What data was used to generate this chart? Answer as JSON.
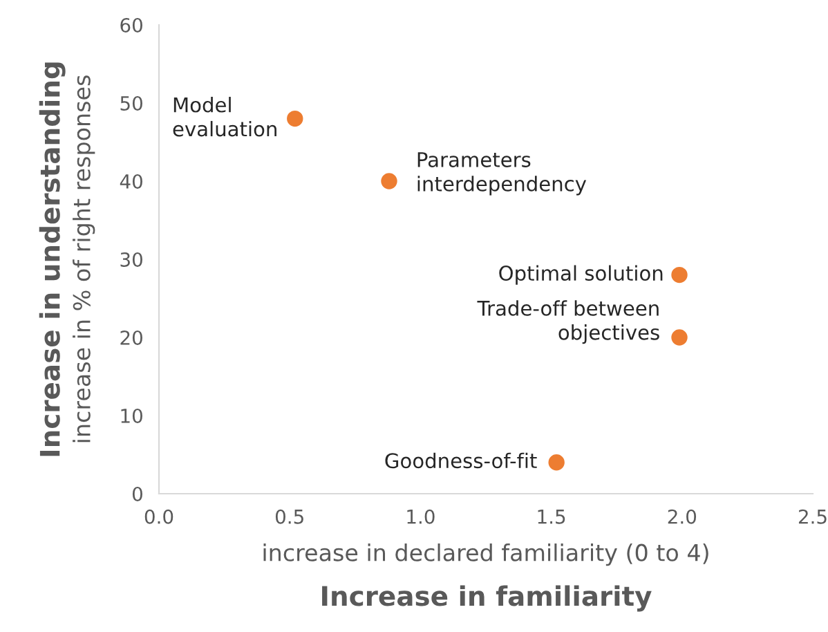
{
  "chart_data": {
    "type": "scatter",
    "xlabel": "Increase in familiarity",
    "ylabel": "Increase in understanding",
    "x": [
      0.52,
      0.88,
      1.99,
      1.99,
      1.52
    ],
    "values": [
      48,
      40,
      28,
      20,
      4
    ],
    "color": "#ed7d31",
    "marker": "circle",
    "grid": false,
    "legend": false,
    "xlim": [
      0,
      2.5
    ],
    "ylim": [
      0,
      60
    ],
    "xticks": [
      {
        "value": 0,
        "label": "0.0"
      },
      {
        "value": 0.5,
        "label": "0.5"
      },
      {
        "value": 1,
        "label": "1.0"
      },
      {
        "value": 1.5,
        "label": "1.5"
      },
      {
        "value": 2,
        "label": "2.0"
      },
      {
        "value": 2.5,
        "label": "2.5"
      }
    ],
    "yticks": [
      0,
      10,
      20,
      30,
      40,
      50,
      60
    ],
    "annotations": [
      "increase in declared familiarity (0 to 4)",
      "increase in % of right responses",
      {
        "text": "Model\nevaluation",
        "x": 0.52,
        "y": 48
      },
      {
        "text": "Parameters\ninterdependency",
        "x": 0.88,
        "y": 40
      },
      {
        "text": "Optimal solution",
        "x": 1.99,
        "y": 28
      },
      {
        "text": "Trade-off between\nobjectives",
        "x": 1.99,
        "y": 20
      },
      {
        "text": "Goodness-of-fit",
        "x": 1.52,
        "y": 4
      }
    ]
  }
}
